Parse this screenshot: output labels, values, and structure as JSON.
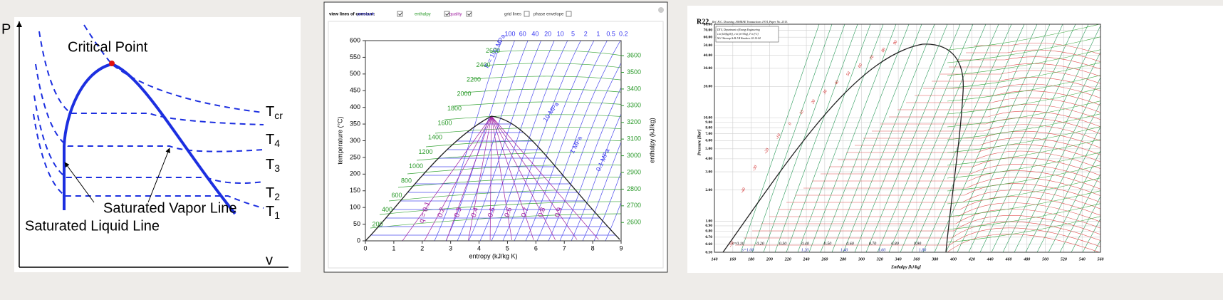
{
  "pv_diagram": {
    "y_axis": "P",
    "x_axis": "v",
    "critical_point": "Critical Point",
    "isotherms": [
      {
        "name": "T",
        "sub": "cr"
      },
      {
        "name": "T",
        "sub": "4"
      },
      {
        "name": "T",
        "sub": "3"
      },
      {
        "name": "T",
        "sub": "2"
      },
      {
        "name": "T",
        "sub": "1"
      }
    ],
    "vapor_line": "Saturated Vapor Line",
    "liquid_line": "Saturated Liquid Line"
  },
  "ts_chart": {
    "controls": {
      "label": "view lines of constant:",
      "options": [
        {
          "label": "pressure",
          "checked": true,
          "color": "#3a3af0"
        },
        {
          "label": "enthalpy",
          "checked": true,
          "color": "#2a9a2a"
        },
        {
          "label": "quality",
          "checked": true,
          "color": "#a020a0"
        },
        {
          "label": "grid lines",
          "checked": false,
          "color": "#333333"
        },
        {
          "label": "phase envelope",
          "checked": false,
          "color": "#333333"
        }
      ]
    },
    "chart_data": {
      "type": "line",
      "x_label": "entropy (kJ/kg K)",
      "y_label": "temperature (°C)",
      "y2_label": "enthalpy (kJ/kg)",
      "xlim": [
        0,
        9
      ],
      "xticks": [
        0,
        1,
        2,
        3,
        4,
        5,
        6,
        7,
        8,
        9
      ],
      "ylim": [
        0,
        600
      ],
      "yticks": [
        0,
        50,
        100,
        150,
        200,
        250,
        300,
        350,
        400,
        450,
        500,
        550,
        600
      ],
      "y2lim": [
        2490,
        3690
      ],
      "y2ticks": [
        2600,
        2700,
        2800,
        2900,
        3000,
        3100,
        3200,
        3300,
        3400,
        3500,
        3600
      ],
      "pressure_ticks": [
        100,
        60,
        40,
        20,
        10,
        5,
        2,
        1,
        0.5,
        0.2
      ],
      "pressure_lines": [
        "P = 100 MPa",
        "10 MPa",
        "1 MPa",
        "0.1 MPa"
      ],
      "enthalpy_ticks": [
        200,
        400,
        600,
        800,
        1000,
        1200,
        1400,
        1600,
        1800,
        2000,
        2200,
        2400,
        2600
      ],
      "quality_prefix": "q =",
      "quality_ticks": [
        0.1,
        0.2,
        0.3,
        0.4,
        0.5,
        0.6,
        0.7,
        0.8,
        0.9
      ]
    }
  },
  "ph_chart": {
    "title": "R22",
    "reference": "Ref. H.C. Downing, ASHRAE Transactions 1974, Paper No. 2313.",
    "note": [
      "DTU, Department of Energy Engineering",
      "s in [kJ/(kg K)], v in [m^3/kg], T in [ºC]",
      "M.J. Skovrup & H.J.H Knudsen. 02-10-04"
    ],
    "chart_data": {
      "type": "line",
      "x_label": "Enthalpy [kJ/kg]",
      "y_label": "Pressure [Bar]",
      "xlim": [
        140,
        560
      ],
      "xticks": [
        140,
        160,
        180,
        200,
        220,
        240,
        260,
        280,
        300,
        320,
        340,
        360,
        380,
        400,
        420,
        440,
        460,
        480,
        500,
        520,
        540,
        560
      ],
      "ylim": [
        0.5,
        80
      ],
      "log_y": true,
      "yticks": [
        {
          "value": 80,
          "label": "80.00"
        },
        {
          "value": 70,
          "label": "70.00"
        },
        {
          "value": 60,
          "label": "60.00"
        },
        {
          "value": 50,
          "label": "50.00"
        },
        {
          "value": 40,
          "label": "40.00"
        },
        {
          "value": 30,
          "label": "30.00"
        },
        {
          "value": 20,
          "label": "20.00"
        },
        {
          "value": 10,
          "label": "10.00"
        },
        {
          "value": 9,
          "label": "9.00"
        },
        {
          "value": 8,
          "label": "8.00"
        },
        {
          "value": 7,
          "label": "7.00"
        },
        {
          "value": 6,
          "label": "6.00"
        },
        {
          "value": 5,
          "label": "5.00"
        },
        {
          "value": 4,
          "label": "4.00"
        },
        {
          "value": 3,
          "label": "3.00"
        },
        {
          "value": 2,
          "label": "2.00"
        },
        {
          "value": 1,
          "label": "1.00"
        },
        {
          "value": 0.9,
          "label": "0.90"
        },
        {
          "value": 0.8,
          "label": "0.80"
        },
        {
          "value": 0.7,
          "label": "0.70"
        },
        {
          "value": 0.6,
          "label": "0.60"
        },
        {
          "value": 0.5,
          "label": "0.50"
        }
      ],
      "quality_labels": [
        "x=0.10",
        "0.20",
        "0.30",
        "0.40",
        "0.50",
        "0.60",
        "0.70",
        "0.80",
        "0.90"
      ],
      "entropy_labels": [
        "s=1.00",
        "1.20",
        "1.40",
        "1.60",
        "1.80"
      ],
      "temperature_labels": [
        -50,
        -40,
        -30,
        -20,
        -10,
        0,
        10,
        20,
        30,
        40,
        50,
        60,
        70,
        80,
        90
      ]
    }
  }
}
